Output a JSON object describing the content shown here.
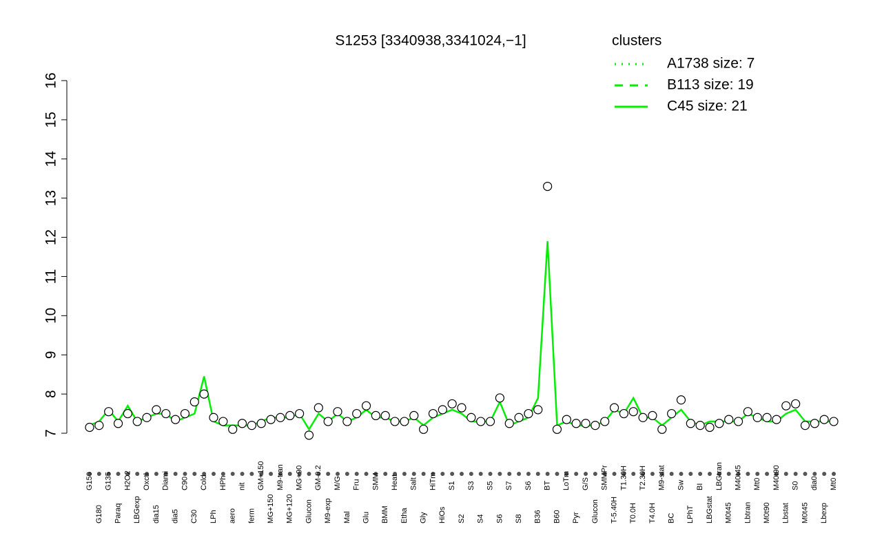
{
  "chart_data": {
    "type": "scatter",
    "title": "S1253 [3340938,3341024,−1]",
    "categories": [
      "G150",
      "G180",
      "G135",
      "Paraq",
      "H2O2",
      "LBGexp",
      "Oxctl",
      "dia15",
      "Diami",
      "dia5",
      "C90",
      "C30",
      "Cold",
      "LPh",
      "HPh",
      "aero",
      "nit",
      "ferm",
      "GM+150",
      "MG+150",
      "M9-tran",
      "MG+120",
      "MG+90",
      "Glucon",
      "GM-0.2",
      "M9-exp",
      "M/G",
      "Mal",
      "Fru",
      "Glu",
      "SMM",
      "BMM",
      "Heat",
      "Etha",
      "Salt",
      "Gly",
      "HiTm",
      "HiOs",
      "S1",
      "S2",
      "S3",
      "S4",
      "S5",
      "S6",
      "S7",
      "S8",
      "S6",
      "B36",
      "BT",
      "B60",
      "LoTm",
      "Pyr",
      "G/S",
      "Glucon",
      "SMMPr",
      "T-5.40H",
      "T1.30H",
      "T0.0H",
      "T2.30H",
      "T4.0H",
      "M9-stat",
      "BC",
      "Sw",
      "LPhT",
      "BI",
      "LBGstat",
      "LBGtran",
      "M0t45",
      "M40t45",
      "Lbtran",
      "Mt0",
      "M0t90",
      "M40t90",
      "Lbstat",
      "S0",
      "M0t45",
      "dia0",
      "Lbexp",
      "Mt0"
    ],
    "values": [
      7.15,
      7.2,
      7.55,
      7.25,
      7.5,
      7.3,
      7.4,
      7.6,
      7.5,
      7.35,
      7.5,
      7.8,
      8.0,
      7.4,
      7.3,
      7.1,
      7.25,
      7.2,
      7.25,
      7.35,
      7.4,
      7.45,
      7.5,
      6.95,
      7.65,
      7.3,
      7.55,
      7.3,
      7.5,
      7.7,
      7.45,
      7.45,
      7.3,
      7.3,
      7.45,
      7.1,
      7.5,
      7.6,
      7.75,
      7.65,
      7.4,
      7.3,
      7.3,
      7.9,
      7.25,
      7.4,
      7.5,
      7.6,
      13.3,
      7.1,
      7.35,
      7.25,
      7.25,
      7.2,
      7.3,
      7.65,
      7.5,
      7.55,
      7.4,
      7.45,
      7.1,
      7.5,
      7.85,
      7.25,
      7.2,
      7.15,
      7.25,
      7.35,
      7.3,
      7.55,
      7.4,
      7.4,
      7.35,
      7.7,
      7.75,
      7.2,
      7.25,
      7.35,
      7.3
    ],
    "line_values": [
      7.2,
      7.3,
      7.6,
      7.3,
      7.7,
      7.3,
      7.4,
      7.5,
      7.5,
      7.3,
      7.4,
      7.5,
      8.45,
      7.3,
      7.2,
      7.2,
      7.2,
      7.2,
      7.3,
      7.4,
      7.4,
      7.4,
      7.5,
      7.1,
      7.5,
      7.3,
      7.5,
      7.3,
      7.4,
      7.6,
      7.4,
      7.4,
      7.3,
      7.3,
      7.4,
      7.2,
      7.4,
      7.5,
      7.6,
      7.5,
      7.3,
      7.3,
      7.3,
      7.8,
      7.2,
      7.3,
      7.4,
      7.9,
      11.9,
      7.2,
      7.3,
      7.2,
      7.2,
      7.2,
      7.3,
      7.6,
      7.5,
      7.9,
      7.4,
      7.4,
      7.2,
      7.4,
      7.6,
      7.3,
      7.2,
      7.3,
      7.3,
      7.3,
      7.3,
      7.5,
      7.4,
      7.3,
      7.3,
      7.5,
      7.6,
      7.3,
      7.3,
      7.3,
      7.3
    ],
    "point_color": "#000000",
    "line_color": "#00ee00",
    "ylim": [
      7,
      16
    ],
    "yticks": [
      7,
      8,
      9,
      10,
      11,
      12,
      13,
      14,
      15,
      16
    ],
    "legend": {
      "title": "clusters",
      "color": "#00ee00",
      "items": [
        {
          "name": "A1738 size: 7",
          "style": "dotted"
        },
        {
          "name": "B113 size: 19",
          "style": "dashed"
        },
        {
          "name": "C45 size: 21",
          "style": "solid"
        }
      ]
    }
  }
}
